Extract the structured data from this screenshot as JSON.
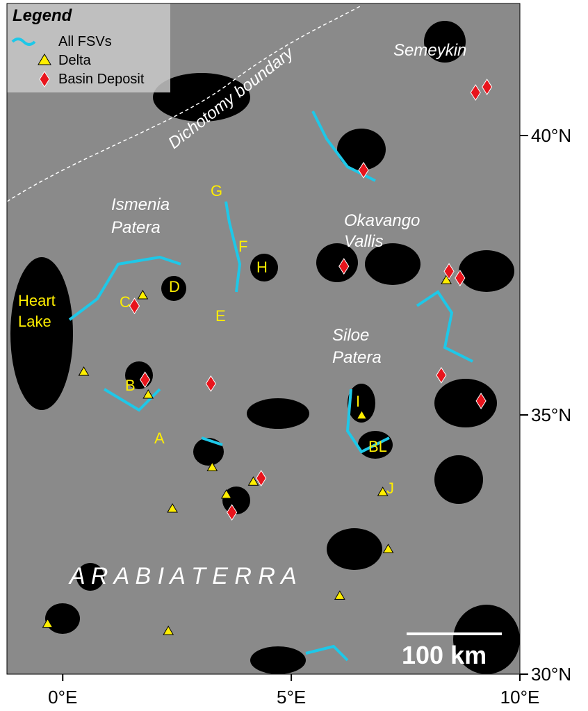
{
  "legend": {
    "title": "Legend",
    "items": [
      "All FSVs",
      "Delta",
      "Basin Deposit"
    ]
  },
  "map": {
    "xlim": [
      -1.22,
      10
    ],
    "ylim": [
      30,
      42.4
    ],
    "xticks": [
      {
        "value": 0,
        "label": "0°E"
      },
      {
        "value": 5,
        "label": "5°E"
      },
      {
        "value": 10,
        "label": "10°E"
      }
    ],
    "yticks": [
      {
        "value": 30,
        "label": "30°N"
      },
      {
        "value": 35,
        "label": "35°N"
      },
      {
        "value": 40,
        "label": "40°N"
      }
    ]
  },
  "deltas": {
    "lon": [
      1.75,
      0.46,
      1.87,
      3.27,
      4.17,
      3.58,
      2.4,
      6.54,
      8.39,
      7.0,
      7.12,
      6.06,
      -0.33,
      2.31
    ],
    "lat": [
      37.14,
      35.77,
      35.36,
      33.99,
      33.71,
      33.46,
      33.19,
      34.99,
      37.41,
      33.51,
      32.41,
      31.51,
      30.97,
      30.83
    ]
  },
  "basin_deposits": {
    "lon": [
      9.03,
      9.28,
      6.58,
      6.15,
      8.45,
      8.69,
      1.57,
      1.8,
      3.24,
      4.34,
      3.7,
      8.28,
      9.15
    ],
    "lat": [
      40.77,
      40.87,
      39.38,
      37.66,
      37.57,
      37.45,
      36.95,
      35.63,
      35.56,
      33.78,
      33.12,
      35.71,
      35.25
    ]
  },
  "place_names": {
    "dichotomy": "Dichotomy boundary",
    "semeykin": "Semeykin",
    "ismenia": [
      "Ismenia",
      "Patera"
    ],
    "okavango": [
      "Okavango",
      "Vallis"
    ],
    "heart_lake": [
      "Heart",
      "Lake"
    ],
    "siloe": [
      "Siloe",
      "Patera"
    ],
    "arabia": "A R A B I A   T E R R A"
  },
  "basin_letters": [
    "G",
    "F",
    "H",
    "D",
    "C",
    "E",
    "B",
    "A",
    "I",
    "BL",
    "J"
  ],
  "scale_bar": "100 km"
}
